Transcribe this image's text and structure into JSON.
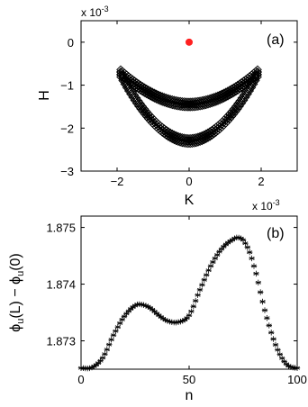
{
  "chart_data": [
    {
      "type": "scatter",
      "panel_label": "(a)",
      "xlabel": "K",
      "ylabel": "H",
      "x_multiplier": "x 10",
      "x_multiplier_exp": "-3",
      "y_multiplier": "x 10",
      "y_multiplier_exp": "-3",
      "xlim": [
        -3,
        3
      ],
      "ylim": [
        -3,
        0.5
      ],
      "xticks": [
        -2,
        0,
        2
      ],
      "xtick_labels": [
        "−2",
        "0",
        "2"
      ],
      "yticks": [
        0,
        -1,
        -2,
        -3
      ],
      "ytick_labels": [
        "0",
        "−1",
        "−2",
        "−3"
      ],
      "grid": false,
      "series": [
        {
          "marker": "diamond-open",
          "color": "#000000",
          "upper_arc": {
            "K_range": [
              -1.9,
              1.9
            ],
            "H_center": -1.45,
            "H_ends": -0.7
          },
          "lower_arc": {
            "K_range": [
              -1.9,
              1.9
            ],
            "H_center": -2.3,
            "H_ends": -0.75
          }
        },
        {
          "marker": "dot",
          "color": "#ff2020",
          "x": [
            0
          ],
          "y": [
            0
          ]
        }
      ]
    },
    {
      "type": "scatter",
      "panel_label": "(b)",
      "xlabel": "n",
      "ylabel_main": "ϕ",
      "ylabel_sub": "u",
      "ylabel_mid": "(L) − ϕ",
      "ylabel_sub2": "u",
      "ylabel_end": "(0)",
      "xlim": [
        0,
        100
      ],
      "ylim": [
        1.8725,
        1.8752
      ],
      "xticks": [
        0,
        50,
        100
      ],
      "xtick_labels": [
        "0",
        "50",
        "100"
      ],
      "yticks": [
        1.873,
        1.874,
        1.875
      ],
      "ytick_labels": [
        "1.873",
        "1.874",
        "1.875"
      ],
      "grid": false,
      "series": [
        {
          "marker": "asterisk",
          "color": "#000000",
          "keypoints": {
            "n": [
              0,
              5,
              10,
              15,
              20,
              25,
              28,
              32,
              36,
              40,
              45,
              50,
              55,
              60,
              65,
              70,
              73,
              76,
              80,
              85,
              90,
              95,
              100
            ],
            "value": [
              1.87252,
              1.87253,
              1.8727,
              1.8731,
              1.87343,
              1.87362,
              1.87364,
              1.87358,
              1.87345,
              1.87335,
              1.87333,
              1.87345,
              1.8739,
              1.87432,
              1.87462,
              1.87478,
              1.87482,
              1.87472,
              1.87432,
              1.87354,
              1.87293,
              1.87259,
              1.87252
            ]
          }
        }
      ]
    }
  ]
}
